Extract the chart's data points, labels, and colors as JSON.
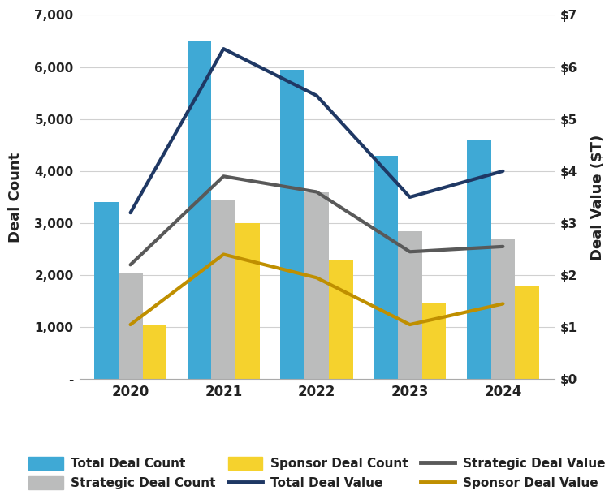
{
  "years": [
    2020,
    2021,
    2022,
    2023,
    2024
  ],
  "total_deal_count": [
    3400,
    6500,
    5950,
    4300,
    4600
  ],
  "strategic_deal_count": [
    2050,
    3450,
    3600,
    2850,
    2700
  ],
  "sponsor_deal_count": [
    1050,
    3000,
    2300,
    1450,
    1800
  ],
  "total_deal_value": [
    3.2,
    6.35,
    5.45,
    3.5,
    4.0
  ],
  "strategic_deal_value": [
    2.2,
    3.9,
    3.6,
    2.45,
    2.55
  ],
  "sponsor_deal_value": [
    1.05,
    2.4,
    1.95,
    1.05,
    1.45
  ],
  "bar_width": 0.26,
  "color_total_bar": "#3FA9D5",
  "color_strategic_bar": "#BBBCBC",
  "color_sponsor_bar": "#F5D22D",
  "color_total_line": "#1F3864",
  "color_strategic_line": "#595959",
  "color_sponsor_line": "#BF8F00",
  "ylabel_left": "Deal Count",
  "ylabel_right": "Deal Value ($T)",
  "ylim_left": [
    0,
    7000
  ],
  "ylim_right": [
    0,
    7
  ],
  "yticks_left": [
    0,
    1000,
    2000,
    3000,
    4000,
    5000,
    6000,
    7000
  ],
  "ytick_labels_left": [
    "-",
    "1,000",
    "2,000",
    "3,000",
    "4,000",
    "5,000",
    "6,000",
    "7,000"
  ],
  "ytick_labels_right": [
    "$0",
    "$1",
    "$2",
    "$3",
    "$4",
    "$5",
    "$6",
    "$7"
  ],
  "background_color": "#FFFFFF",
  "line_width": 3.0,
  "legend_labels_bar": [
    "Total Deal Count",
    "Strategic Deal Count",
    "Sponsor Deal Count"
  ],
  "legend_labels_line": [
    "Total Deal Value",
    "Strategic Deal Value",
    "Sponsor Deal Value"
  ],
  "x_line_offsets": [
    -0.13,
    -0.13,
    -0.13,
    -0.13,
    -0.13
  ]
}
